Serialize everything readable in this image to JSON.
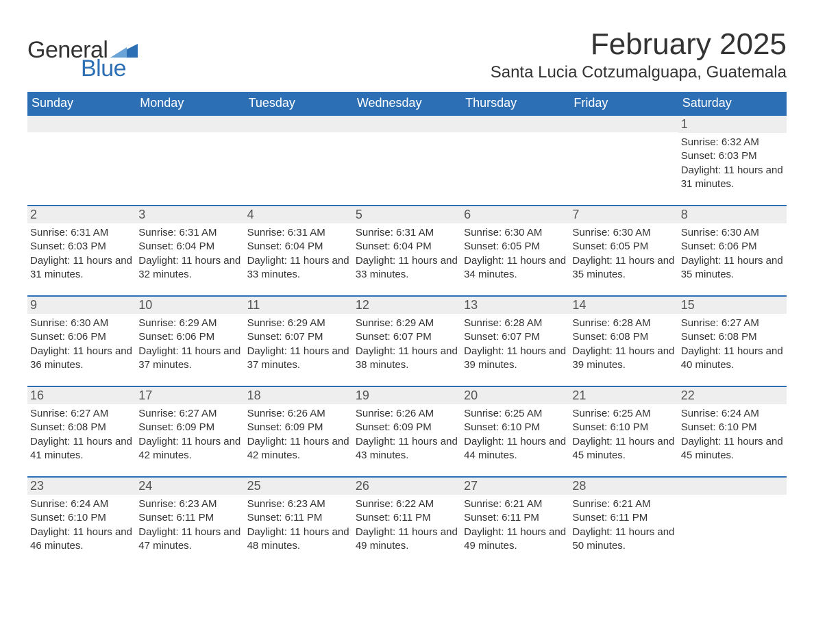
{
  "logo": {
    "word1": "General",
    "word2": "Blue",
    "text_color": "#333333",
    "accent_color": "#2d6fb5"
  },
  "title": {
    "month_year": "February 2025",
    "location": "Santa Lucia Cotzumalguapa, Guatemala",
    "title_fontsize": 44,
    "location_fontsize": 24,
    "title_color": "#333333"
  },
  "calendar": {
    "header_bg": "#2d6fb5",
    "header_text_color": "#ffffff",
    "row_divider_color": "#2d6fb5",
    "daynum_strip_bg": "#eeeeee",
    "body_text_color": "#333333",
    "header_fontsize": 18,
    "daynum_fontsize": 18,
    "body_fontsize": 15,
    "day_headers": [
      "Sunday",
      "Monday",
      "Tuesday",
      "Wednesday",
      "Thursday",
      "Friday",
      "Saturday"
    ],
    "weeks": [
      [
        null,
        null,
        null,
        null,
        null,
        null,
        {
          "n": "1",
          "sunrise": "Sunrise: 6:32 AM",
          "sunset": "Sunset: 6:03 PM",
          "daylight": "Daylight: 11 hours and 31 minutes."
        }
      ],
      [
        {
          "n": "2",
          "sunrise": "Sunrise: 6:31 AM",
          "sunset": "Sunset: 6:03 PM",
          "daylight": "Daylight: 11 hours and 31 minutes."
        },
        {
          "n": "3",
          "sunrise": "Sunrise: 6:31 AM",
          "sunset": "Sunset: 6:04 PM",
          "daylight": "Daylight: 11 hours and 32 minutes."
        },
        {
          "n": "4",
          "sunrise": "Sunrise: 6:31 AM",
          "sunset": "Sunset: 6:04 PM",
          "daylight": "Daylight: 11 hours and 33 minutes."
        },
        {
          "n": "5",
          "sunrise": "Sunrise: 6:31 AM",
          "sunset": "Sunset: 6:04 PM",
          "daylight": "Daylight: 11 hours and 33 minutes."
        },
        {
          "n": "6",
          "sunrise": "Sunrise: 6:30 AM",
          "sunset": "Sunset: 6:05 PM",
          "daylight": "Daylight: 11 hours and 34 minutes."
        },
        {
          "n": "7",
          "sunrise": "Sunrise: 6:30 AM",
          "sunset": "Sunset: 6:05 PM",
          "daylight": "Daylight: 11 hours and 35 minutes."
        },
        {
          "n": "8",
          "sunrise": "Sunrise: 6:30 AM",
          "sunset": "Sunset: 6:06 PM",
          "daylight": "Daylight: 11 hours and 35 minutes."
        }
      ],
      [
        {
          "n": "9",
          "sunrise": "Sunrise: 6:30 AM",
          "sunset": "Sunset: 6:06 PM",
          "daylight": "Daylight: 11 hours and 36 minutes."
        },
        {
          "n": "10",
          "sunrise": "Sunrise: 6:29 AM",
          "sunset": "Sunset: 6:06 PM",
          "daylight": "Daylight: 11 hours and 37 minutes."
        },
        {
          "n": "11",
          "sunrise": "Sunrise: 6:29 AM",
          "sunset": "Sunset: 6:07 PM",
          "daylight": "Daylight: 11 hours and 37 minutes."
        },
        {
          "n": "12",
          "sunrise": "Sunrise: 6:29 AM",
          "sunset": "Sunset: 6:07 PM",
          "daylight": "Daylight: 11 hours and 38 minutes."
        },
        {
          "n": "13",
          "sunrise": "Sunrise: 6:28 AM",
          "sunset": "Sunset: 6:07 PM",
          "daylight": "Daylight: 11 hours and 39 minutes."
        },
        {
          "n": "14",
          "sunrise": "Sunrise: 6:28 AM",
          "sunset": "Sunset: 6:08 PM",
          "daylight": "Daylight: 11 hours and 39 minutes."
        },
        {
          "n": "15",
          "sunrise": "Sunrise: 6:27 AM",
          "sunset": "Sunset: 6:08 PM",
          "daylight": "Daylight: 11 hours and 40 minutes."
        }
      ],
      [
        {
          "n": "16",
          "sunrise": "Sunrise: 6:27 AM",
          "sunset": "Sunset: 6:08 PM",
          "daylight": "Daylight: 11 hours and 41 minutes."
        },
        {
          "n": "17",
          "sunrise": "Sunrise: 6:27 AM",
          "sunset": "Sunset: 6:09 PM",
          "daylight": "Daylight: 11 hours and 42 minutes."
        },
        {
          "n": "18",
          "sunrise": "Sunrise: 6:26 AM",
          "sunset": "Sunset: 6:09 PM",
          "daylight": "Daylight: 11 hours and 42 minutes."
        },
        {
          "n": "19",
          "sunrise": "Sunrise: 6:26 AM",
          "sunset": "Sunset: 6:09 PM",
          "daylight": "Daylight: 11 hours and 43 minutes."
        },
        {
          "n": "20",
          "sunrise": "Sunrise: 6:25 AM",
          "sunset": "Sunset: 6:10 PM",
          "daylight": "Daylight: 11 hours and 44 minutes."
        },
        {
          "n": "21",
          "sunrise": "Sunrise: 6:25 AM",
          "sunset": "Sunset: 6:10 PM",
          "daylight": "Daylight: 11 hours and 45 minutes."
        },
        {
          "n": "22",
          "sunrise": "Sunrise: 6:24 AM",
          "sunset": "Sunset: 6:10 PM",
          "daylight": "Daylight: 11 hours and 45 minutes."
        }
      ],
      [
        {
          "n": "23",
          "sunrise": "Sunrise: 6:24 AM",
          "sunset": "Sunset: 6:10 PM",
          "daylight": "Daylight: 11 hours and 46 minutes."
        },
        {
          "n": "24",
          "sunrise": "Sunrise: 6:23 AM",
          "sunset": "Sunset: 6:11 PM",
          "daylight": "Daylight: 11 hours and 47 minutes."
        },
        {
          "n": "25",
          "sunrise": "Sunrise: 6:23 AM",
          "sunset": "Sunset: 6:11 PM",
          "daylight": "Daylight: 11 hours and 48 minutes."
        },
        {
          "n": "26",
          "sunrise": "Sunrise: 6:22 AM",
          "sunset": "Sunset: 6:11 PM",
          "daylight": "Daylight: 11 hours and 49 minutes."
        },
        {
          "n": "27",
          "sunrise": "Sunrise: 6:21 AM",
          "sunset": "Sunset: 6:11 PM",
          "daylight": "Daylight: 11 hours and 49 minutes."
        },
        {
          "n": "28",
          "sunrise": "Sunrise: 6:21 AM",
          "sunset": "Sunset: 6:11 PM",
          "daylight": "Daylight: 11 hours and 50 minutes."
        },
        null
      ]
    ]
  }
}
